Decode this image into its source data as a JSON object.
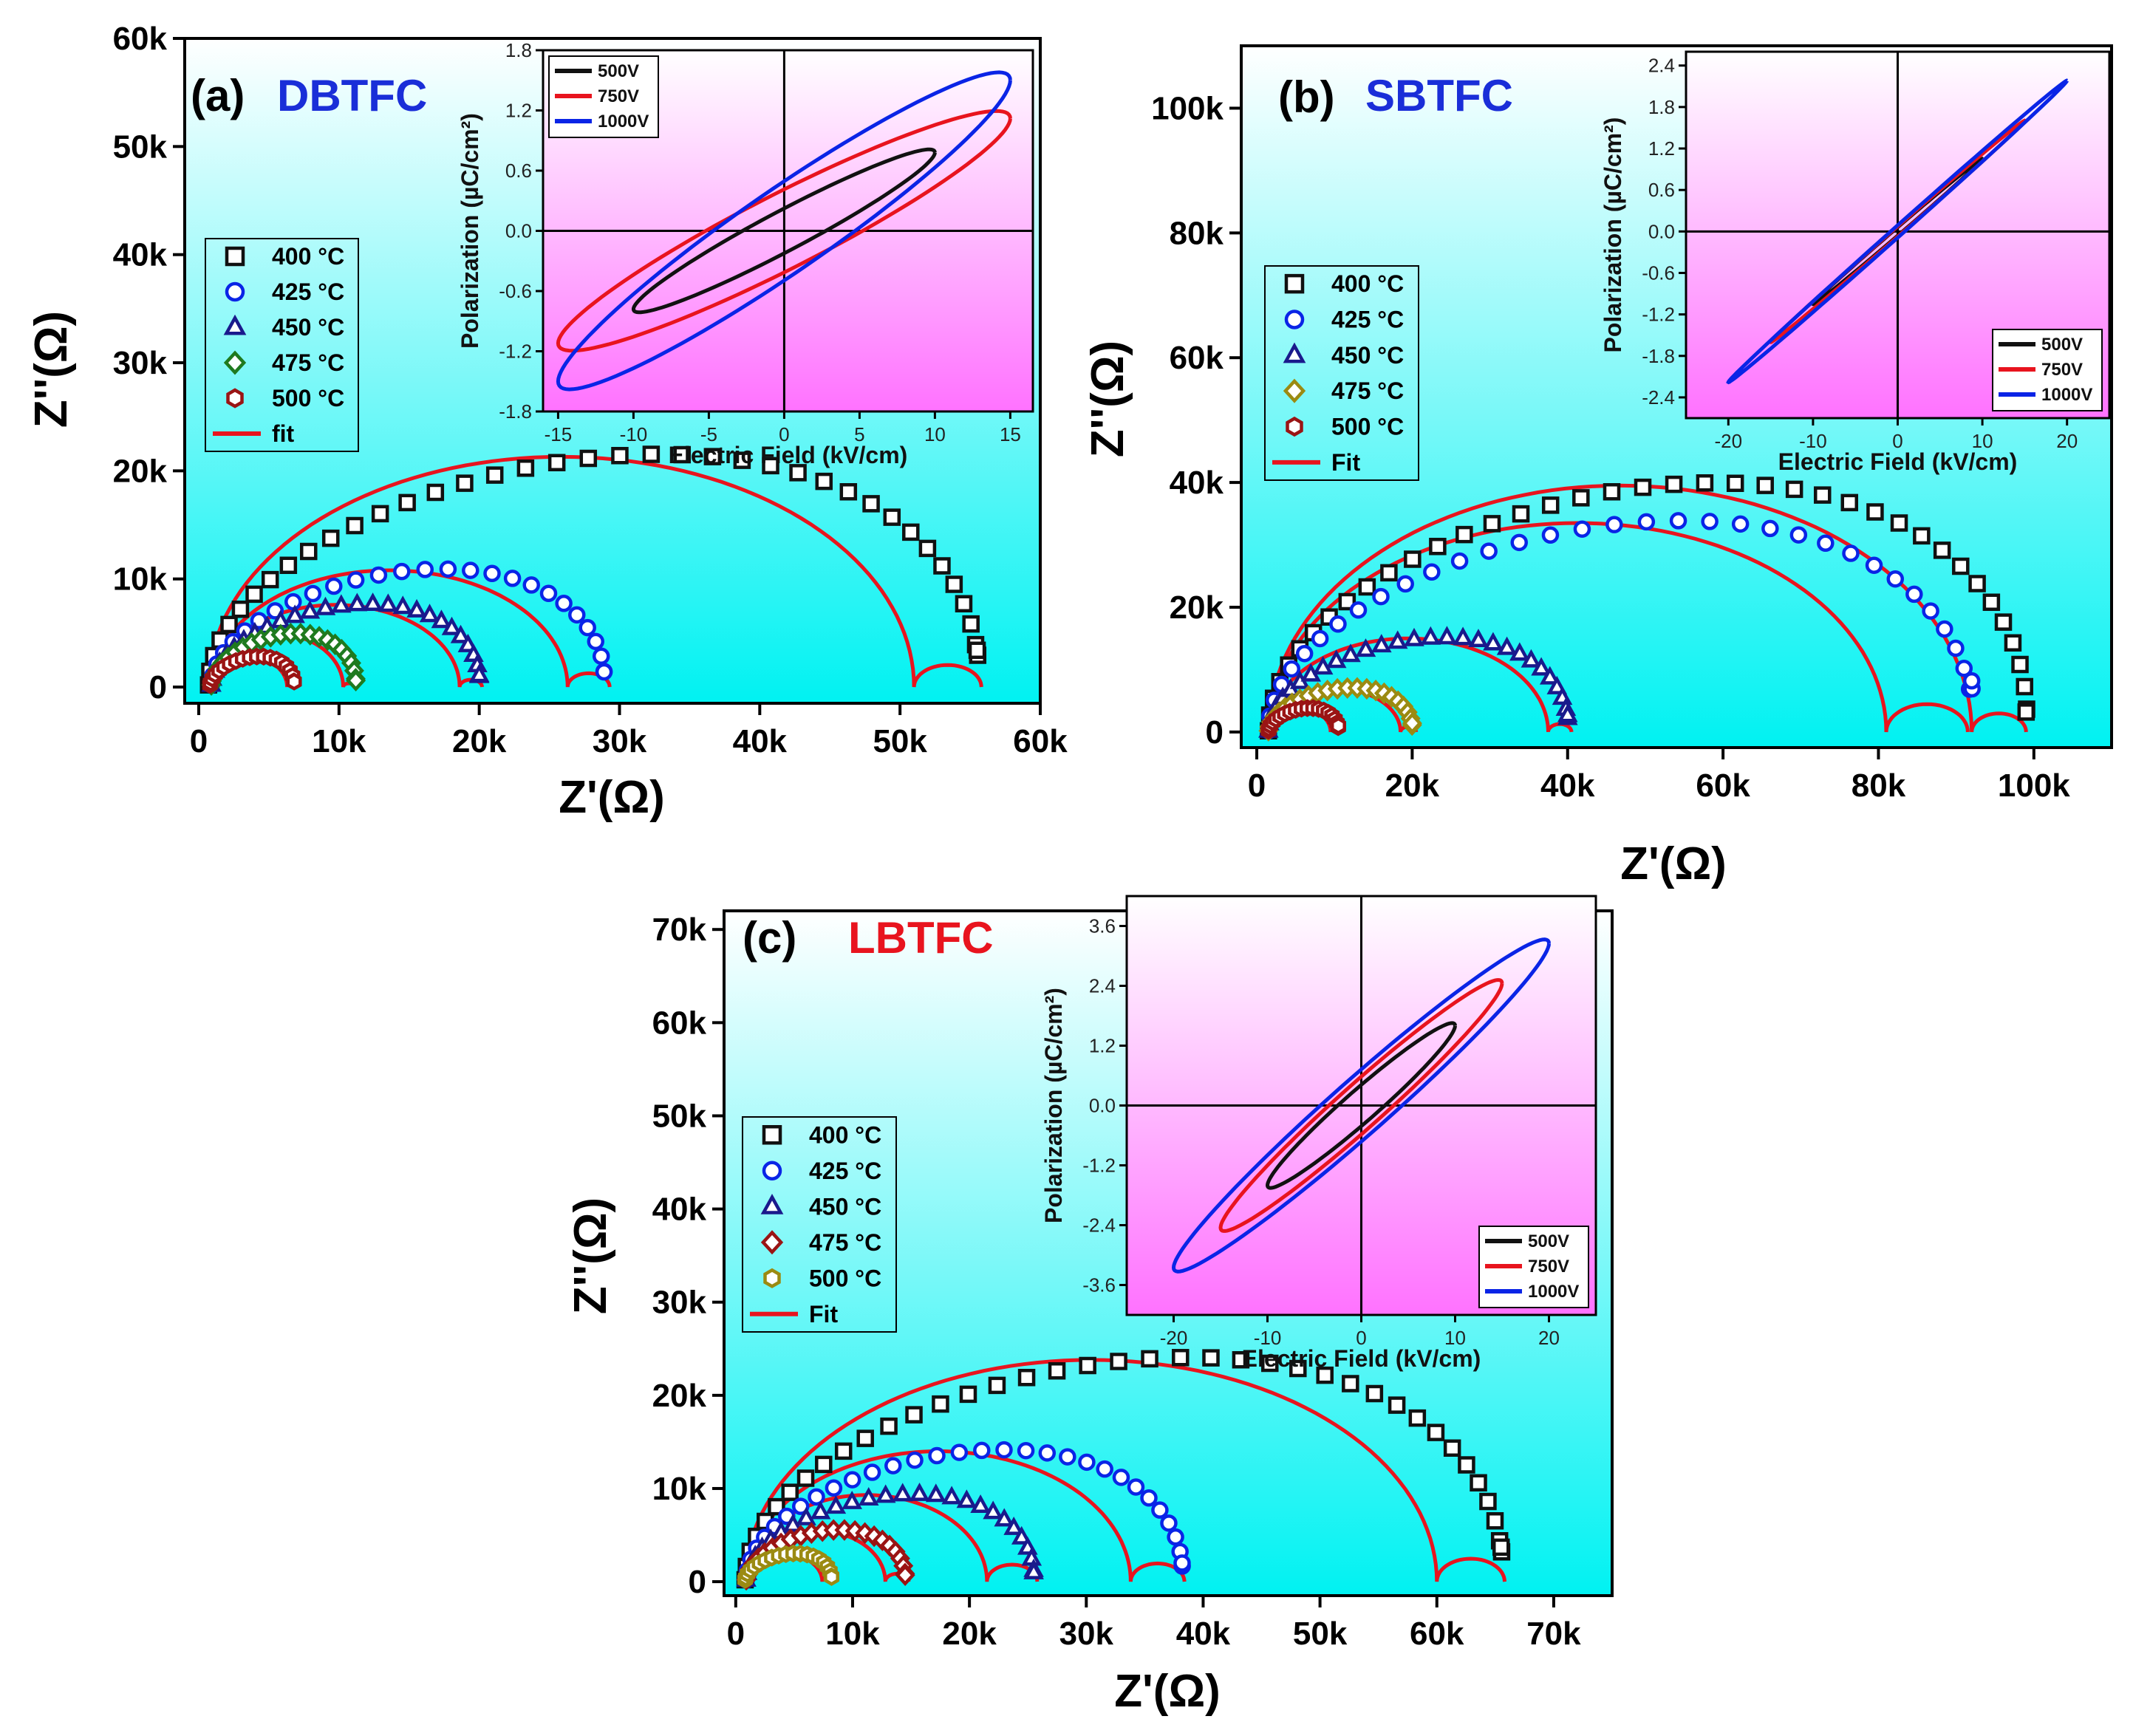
{
  "colors": {
    "black": "#111111",
    "blue": "#0a24e6",
    "navy": "#1a1a8c",
    "green": "#1f7a1f",
    "darkred": "#9a1414",
    "olive": "#9b8a12",
    "fit": "#e8141e",
    "bg_top": "#ffffff",
    "bg_bottom": "#00f2f2",
    "inset_top": "#ffffff",
    "inset_bottom": "#ff72ff"
  },
  "chart_data": [
    {
      "id": "a",
      "type": "scatter",
      "panel_label": "(a)",
      "material": "DBTFC",
      "material_color": "#1a2ed8",
      "xlabel": "Z'(Ω)",
      "ylabel": "Z''(Ω)",
      "xlim": [
        -1000,
        60000
      ],
      "ylim": [
        -1500,
        60000
      ],
      "xticks": [
        0,
        10000,
        20000,
        30000,
        40000,
        50000,
        60000
      ],
      "xtick_labels": [
        "0",
        "10k",
        "20k",
        "30k",
        "40k",
        "50k",
        "60k"
      ],
      "yticks": [
        0,
        10000,
        20000,
        30000,
        40000,
        50000,
        60000
      ],
      "ytick_labels": [
        "0",
        "10k",
        "20k",
        "30k",
        "40k",
        "50k",
        "60k"
      ],
      "legend": {
        "placement": "middle-left",
        "entries": [
          {
            "label": "400 °C",
            "marker": "square",
            "color": "#111111"
          },
          {
            "label": "425 °C",
            "marker": "circle",
            "color": "#0a24e6"
          },
          {
            "label": "450 °C",
            "marker": "triangle",
            "color": "#1a1a8c"
          },
          {
            "label": "475 °C",
            "marker": "diamond",
            "color": "#1f7a1f"
          },
          {
            "label": "500 °C",
            "marker": "hexagon",
            "color": "#9a1414"
          },
          {
            "label": "fit",
            "marker": "line",
            "color": "#e8141e"
          }
        ]
      },
      "series": [
        {
          "name": "400 °C",
          "marker": "square",
          "color": "#111111",
          "start": 700,
          "end": 55500,
          "peak": 21300,
          "n": 40,
          "tail": 3200
        },
        {
          "name": "425 °C",
          "marker": "circle",
          "color": "#0a24e6",
          "start": 900,
          "end": 28900,
          "peak": 10800,
          "n": 28,
          "tail": 1200
        },
        {
          "name": "450 °C",
          "marker": "triangle",
          "color": "#1a1a8c",
          "start": 900,
          "end": 20000,
          "peak": 7600,
          "n": 28,
          "tail": 900
        },
        {
          "name": "475 °C",
          "marker": "diamond",
          "color": "#1f7a1f",
          "start": 900,
          "end": 11200,
          "peak": 4900,
          "n": 24,
          "tail": 400
        },
        {
          "name": "500 °C",
          "marker": "hexagon",
          "color": "#9a1414",
          "start": 800,
          "end": 6800,
          "peak": 2800,
          "n": 20,
          "tail": 300
        }
      ],
      "fits": [
        {
          "start": 700,
          "end": 51000,
          "r_tail": 55800
        },
        {
          "start": 900,
          "end": 26300,
          "r_tail": 29300
        },
        {
          "start": 900,
          "end": 18600,
          "r_tail": 20200
        },
        {
          "start": 900,
          "end": 10300,
          "r_tail": 11100
        },
        {
          "start": 800,
          "end": 6300,
          "r_tail": 6900
        }
      ],
      "inset": {
        "xlabel": "Electric Field (kV/cm)",
        "ylabel": "Polarization (µC/cm²)",
        "xlim": [
          -16,
          16.5
        ],
        "ylim": [
          -1.8,
          1.8
        ],
        "xticks": [
          -15,
          -10,
          -5,
          0,
          5,
          10,
          15
        ],
        "xtick_labels": [
          "-15",
          "-10",
          "-5",
          "0",
          "5",
          "10",
          "15"
        ],
        "yticks": [
          -1.8,
          -1.2,
          -0.6,
          0.0,
          0.6,
          1.2,
          1.8
        ],
        "ytick_labels": [
          "-1.8",
          "-1.2",
          "-0.6",
          "0.0",
          "0.6",
          "1.2",
          "1.8"
        ],
        "legend_placement": "top-left",
        "loops": [
          {
            "label": "500V",
            "color": "#111111",
            "emax": 10,
            "pmax": 0.78,
            "pr": 0.14,
            "open": 0.28
          },
          {
            "label": "750V",
            "color": "#e8141e",
            "emax": 15,
            "pmax": 1.12,
            "pr": 0.3,
            "open": 0.38
          },
          {
            "label": "1000V",
            "color": "#0a24e6",
            "emax": 15,
            "pmax": 1.5,
            "pr": 0.36,
            "open": 0.45
          }
        ]
      }
    },
    {
      "id": "b",
      "type": "scatter",
      "panel_label": "(b)",
      "material": "SBTFC",
      "material_color": "#1a2ed8",
      "xlabel": "Z'(Ω)",
      "ylabel": "Z''(Ω)",
      "xlim": [
        -2000,
        110000
      ],
      "ylim": [
        -2500,
        110000
      ],
      "xticks": [
        0,
        20000,
        40000,
        60000,
        80000,
        100000
      ],
      "xtick_labels": [
        "0",
        "20k",
        "40k",
        "60k",
        "80k",
        "100k"
      ],
      "yticks": [
        0,
        20000,
        40000,
        60000,
        80000,
        100000
      ],
      "ytick_labels": [
        "0",
        "20k",
        "40k",
        "60k",
        "80k",
        "100k"
      ],
      "legend": {
        "placement": "middle-left",
        "entries": [
          {
            "label": "400 °C",
            "marker": "square",
            "color": "#111111"
          },
          {
            "label": "425 °C",
            "marker": "circle",
            "color": "#0a24e6"
          },
          {
            "label": "450 °C",
            "marker": "triangle",
            "color": "#1a1a8c"
          },
          {
            "label": "475 °C",
            "marker": "diamond",
            "color": "#9b8a12"
          },
          {
            "label": "500 °C",
            "marker": "hexagon",
            "color": "#9a1414"
          },
          {
            "label": "Fit",
            "marker": "line",
            "color": "#e8141e"
          }
        ]
      },
      "series": [
        {
          "name": "400 °C",
          "marker": "square",
          "color": "#111111",
          "start": 1500,
          "end": 99000,
          "peak": 39500,
          "n": 40,
          "tail": 3000
        },
        {
          "name": "425 °C",
          "marker": "circle",
          "color": "#0a24e6",
          "start": 1500,
          "end": 92000,
          "peak": 33500,
          "n": 36,
          "tail": 8000
        },
        {
          "name": "450 °C",
          "marker": "triangle",
          "color": "#1a1a8c",
          "start": 1500,
          "end": 40000,
          "peak": 15000,
          "n": 30,
          "tail": 2500
        },
        {
          "name": "475 °C",
          "marker": "diamond",
          "color": "#9b8a12",
          "start": 1500,
          "end": 20000,
          "peak": 7000,
          "n": 24,
          "tail": 1200
        },
        {
          "name": "500 °C",
          "marker": "hexagon",
          "color": "#9a1414",
          "start": 1500,
          "end": 10500,
          "peak": 3800,
          "n": 20,
          "tail": 800
        }
      ],
      "fits": [
        {
          "start": 1500,
          "end": 92000,
          "r_tail": 99000
        },
        {
          "start": 1500,
          "end": 81000,
          "r_tail": 91500
        },
        {
          "start": 1500,
          "end": 37500,
          "r_tail": 40500
        },
        {
          "start": 1500,
          "end": 18500,
          "r_tail": 20500
        },
        {
          "start": 1500,
          "end": 9500,
          "r_tail": 10800
        }
      ],
      "inset": {
        "xlabel": "Electric Field (kV/cm)",
        "ylabel": "Polarization (µC/cm²)",
        "xlim": [
          -25,
          25
        ],
        "ylim": [
          -2.7,
          2.6
        ],
        "xticks": [
          -20,
          -10,
          0,
          10,
          20
        ],
        "xtick_labels": [
          "-20",
          "-10",
          "0",
          "10",
          "20"
        ],
        "yticks": [
          -2.4,
          -1.8,
          -1.2,
          -0.6,
          0.0,
          0.6,
          1.2,
          1.8,
          2.4
        ],
        "ytick_labels": [
          "-2.4",
          "-1.8",
          "-1.2",
          "-0.6",
          "0.0",
          "0.6",
          "1.2",
          "1.8",
          "2.4"
        ],
        "legend_placement": "bottom-right",
        "loops": [
          {
            "label": "500V",
            "color": "#111111",
            "emax": 10,
            "pmax": 1.05,
            "pr": 0.04,
            "open": 0.07
          },
          {
            "label": "750V",
            "color": "#e8141e",
            "emax": 15,
            "pmax": 1.6,
            "pr": 0.05,
            "open": 0.08
          },
          {
            "label": "1000V",
            "color": "#0a24e6",
            "emax": 20,
            "pmax": 2.18,
            "pr": 0.06,
            "open": 0.1
          }
        ]
      }
    },
    {
      "id": "c",
      "type": "scatter",
      "panel_label": "(c)",
      "material": "LBTFC",
      "material_color": "#e8141e",
      "xlabel": "Z'(Ω)",
      "ylabel": "Z''(Ω)",
      "xlim": [
        -1000,
        75000
      ],
      "ylim": [
        -1500,
        72000
      ],
      "xticks": [
        0,
        10000,
        20000,
        30000,
        40000,
        50000,
        60000,
        70000
      ],
      "xtick_labels": [
        "0",
        "10k",
        "20k",
        "30k",
        "40k",
        "50k",
        "60k",
        "70k"
      ],
      "yticks": [
        0,
        10000,
        20000,
        30000,
        40000,
        50000,
        60000,
        70000
      ],
      "ytick_labels": [
        "0",
        "10k",
        "20k",
        "30k",
        "40k",
        "50k",
        "60k",
        "70k"
      ],
      "legend": {
        "placement": "middle-left",
        "entries": [
          {
            "label": "400 °C",
            "marker": "square",
            "color": "#111111"
          },
          {
            "label": "425 °C",
            "marker": "circle",
            "color": "#0a24e6"
          },
          {
            "label": "450 °C",
            "marker": "triangle",
            "color": "#1a1a8c"
          },
          {
            "label": "475 °C",
            "marker": "diamond",
            "color": "#9a1414"
          },
          {
            "label": "500 °C",
            "marker": "hexagon",
            "color": "#9b8a12"
          },
          {
            "label": "Fit",
            "marker": "line",
            "color": "#e8141e"
          }
        ]
      },
      "series": [
        {
          "name": "400 °C",
          "marker": "square",
          "color": "#111111",
          "start": 800,
          "end": 65500,
          "peak": 23800,
          "n": 40,
          "tail": 3500
        },
        {
          "name": "425 °C",
          "marker": "circle",
          "color": "#0a24e6",
          "start": 900,
          "end": 38200,
          "peak": 14000,
          "n": 32,
          "tail": 1800
        },
        {
          "name": "450 °C",
          "marker": "triangle",
          "color": "#1a1a8c",
          "start": 900,
          "end": 25500,
          "peak": 9300,
          "n": 28,
          "tail": 800
        },
        {
          "name": "475 °C",
          "marker": "diamond",
          "color": "#9a1414",
          "start": 900,
          "end": 14500,
          "peak": 5500,
          "n": 24,
          "tail": 500
        },
        {
          "name": "500 °C",
          "marker": "hexagon",
          "color": "#9b8a12",
          "start": 800,
          "end": 8200,
          "peak": 3000,
          "n": 20,
          "tail": 300
        }
      ],
      "fits": [
        {
          "start": 800,
          "end": 60000,
          "r_tail": 65800
        },
        {
          "start": 900,
          "end": 33800,
          "r_tail": 38400
        },
        {
          "start": 900,
          "end": 21500,
          "r_tail": 25800
        },
        {
          "start": 900,
          "end": 12800,
          "r_tail": 14800
        },
        {
          "start": 800,
          "end": 7400,
          "r_tail": 8500
        }
      ],
      "inset": {
        "xlabel": "Electric Field (kV/cm)",
        "ylabel": "Polarization (µC/cm²)",
        "xlim": [
          -25,
          25
        ],
        "ylim": [
          -4.2,
          4.2
        ],
        "xticks": [
          -20,
          -10,
          0,
          10,
          20
        ],
        "xtick_labels": [
          "-20",
          "-10",
          "0",
          "10",
          "20"
        ],
        "yticks": [
          -3.6,
          -2.4,
          -1.2,
          0.0,
          1.2,
          2.4,
          3.6
        ],
        "ytick_labels": [
          "-3.6",
          "-2.4",
          "-1.2",
          "0.0",
          "1.2",
          "2.4",
          "3.6"
        ],
        "legend_placement": "bottom-right",
        "loops": [
          {
            "label": "500V",
            "color": "#111111",
            "emax": 10,
            "pmax": 1.6,
            "pr": 0.28,
            "open": 0.45
          },
          {
            "label": "750V",
            "color": "#e8141e",
            "emax": 15,
            "pmax": 2.45,
            "pr": 0.4,
            "open": 0.6
          },
          {
            "label": "1000V",
            "color": "#0a24e6",
            "emax": 20,
            "pmax": 3.25,
            "pr": 0.5,
            "open": 0.75
          }
        ]
      }
    }
  ]
}
